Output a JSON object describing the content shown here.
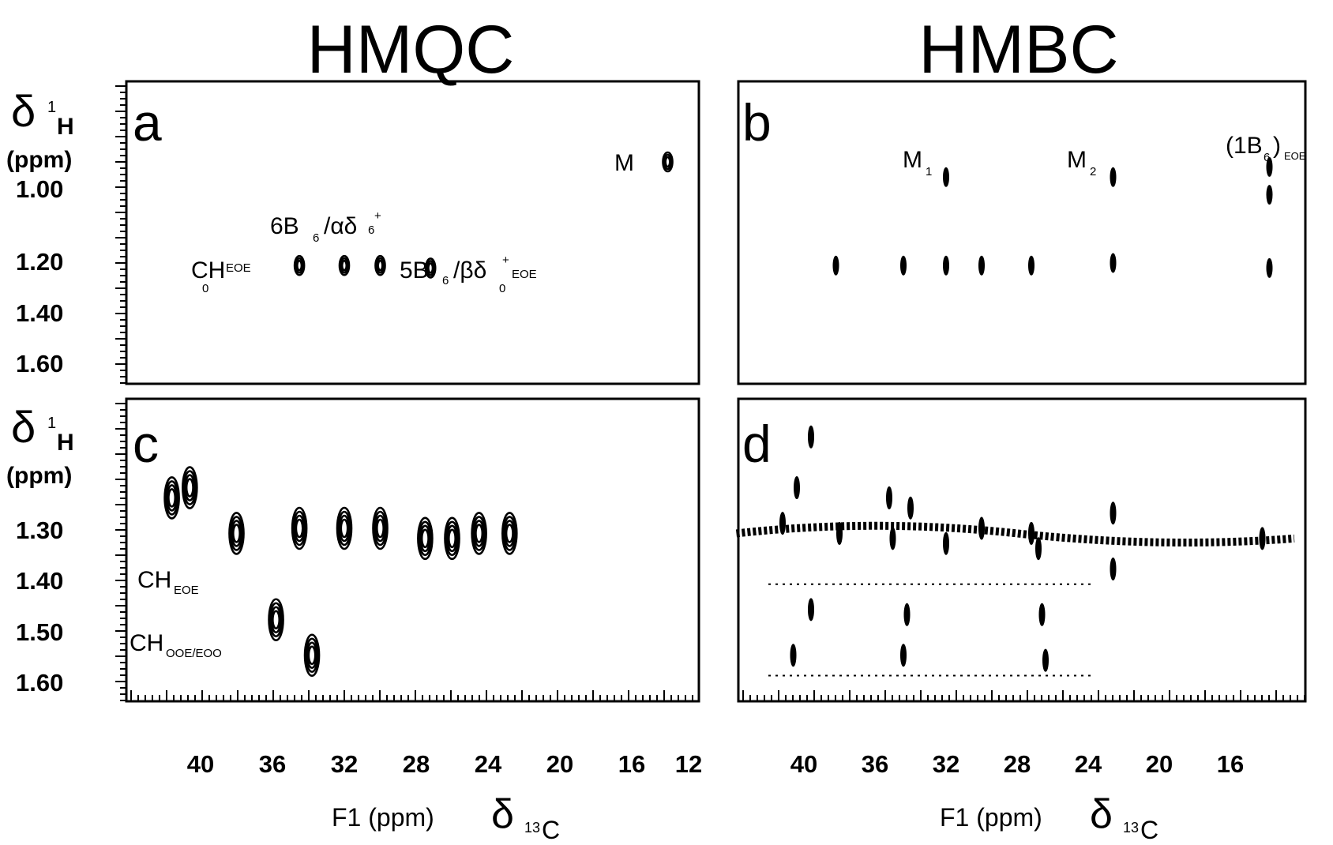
{
  "titles": {
    "left": "HMQC",
    "right": "HMBC"
  },
  "y_axis_label": {
    "delta": "δ",
    "nucleus": "1",
    "element": "H",
    "unit": "(ppm)"
  },
  "x_axis_label": {
    "text": "F1 (ppm)",
    "delta": "δ",
    "nucleus": "13",
    "element": "C"
  },
  "chart_data": [
    {
      "type": "scatter",
      "panel": "a",
      "experiment": "HMQC",
      "ylim": [
        1.7,
        0.75
      ],
      "ytick_labels": [
        "1.00",
        "1.20",
        "1.40",
        "1.60"
      ],
      "peaks": [
        {
          "x": 14.0,
          "y": 0.9,
          "style": "contour"
        },
        {
          "x": 34.5,
          "y": 1.31,
          "style": "contour"
        },
        {
          "x": 32.0,
          "y": 1.31,
          "style": "contour"
        },
        {
          "x": 30.0,
          "y": 1.31,
          "style": "contour"
        },
        {
          "x": 27.2,
          "y": 1.32,
          "style": "contour"
        }
      ],
      "annotations": [
        {
          "main": "M",
          "sub": "",
          "sup": "",
          "x": 15.2,
          "y": 0.88
        },
        {
          "main": "CH",
          "sub": "0",
          "subtext": "EOE",
          "sup": "",
          "x": 43.5,
          "y": 1.24
        },
        {
          "main": "6B",
          "sub": "6",
          "subtext": "/αδ",
          "sup": "+",
          "x": 35.5,
          "y": 1.17
        },
        {
          "main": "5B",
          "sub": "6",
          "subtext": "/βδ",
          "sup": "+",
          "x": 28.5,
          "y": 1.24
        }
      ],
      "label_annotations": {
        "a_M": "M",
        "a_ch": "CH",
        "a_ch_sub": "0",
        "a_ch_sup": "EOE",
        "a_6b": "6B",
        "a_6b_sub": "6",
        "a_6b_rest": "/αδ",
        "a_6b_plus": "+",
        "a_6b_sub2": "6",
        "a_5b": "5B",
        "a_5b_sub": "6",
        "a_5b_rest": "/βδ",
        "a_5b_plus": "+",
        "a_5b_sub0": "0",
        "a_5b_eoe": "EOE"
      }
    },
    {
      "type": "scatter",
      "panel": "b",
      "experiment": "HMBC",
      "ylim": [
        1.7,
        0.75
      ],
      "peaks": [
        {
          "x": 32.0,
          "y": 0.96,
          "style": "filled"
        },
        {
          "x": 22.6,
          "y": 0.96,
          "style": "filled"
        },
        {
          "x": 13.8,
          "y": 0.92,
          "style": "filled"
        },
        {
          "x": 13.8,
          "y": 1.03,
          "style": "filled"
        },
        {
          "x": 38.2,
          "y": 1.31,
          "style": "filled"
        },
        {
          "x": 34.4,
          "y": 1.31,
          "style": "filled"
        },
        {
          "x": 32.0,
          "y": 1.31,
          "style": "filled"
        },
        {
          "x": 30.0,
          "y": 1.31,
          "style": "filled"
        },
        {
          "x": 27.2,
          "y": 1.31,
          "style": "filled"
        },
        {
          "x": 22.6,
          "y": 1.3,
          "style": "filled"
        },
        {
          "x": 13.8,
          "y": 1.32,
          "style": "filled"
        }
      ],
      "annotations": [
        {
          "main": "M",
          "sub": "1",
          "x": 33.0,
          "y": 0.88
        },
        {
          "main": "M",
          "sub": "2",
          "x": 23.6,
          "y": 0.88
        },
        {
          "main": "(1B",
          "sub": "6",
          "suffix": ")",
          "subtext": "EOE",
          "x": 15.5,
          "y": 0.84
        }
      ],
      "label_annotations": {
        "b_m1": "M",
        "b_m1_sub": "1",
        "b_m2": "M",
        "b_m2_sub": "2",
        "b_1b": "(1B",
        "b_1b_sub": "6",
        "b_1b_close": ")",
        "b_1b_eoe": "EOE"
      }
    },
    {
      "type": "scatter",
      "panel": "c",
      "experiment": "HMQC",
      "ylim": [
        1.68,
        1.1
      ],
      "ytick_labels": [
        "1.30",
        "1.40",
        "1.50",
        "1.60"
      ],
      "xlim": [
        44,
        12
      ],
      "xtick_labels": [
        "40",
        "36",
        "32",
        "28",
        "24",
        "20",
        "16",
        "12"
      ],
      "peaks": [
        {
          "x": 40.6,
          "y": 1.22,
          "style": "contour"
        },
        {
          "x": 41.6,
          "y": 1.24,
          "style": "contour"
        },
        {
          "x": 38.0,
          "y": 1.31,
          "style": "contour"
        },
        {
          "x": 34.5,
          "y": 1.3,
          "style": "contour"
        },
        {
          "x": 32.0,
          "y": 1.3,
          "style": "contour"
        },
        {
          "x": 30.0,
          "y": 1.3,
          "style": "contour"
        },
        {
          "x": 27.5,
          "y": 1.32,
          "style": "contour"
        },
        {
          "x": 26.0,
          "y": 1.32,
          "style": "contour"
        },
        {
          "x": 24.5,
          "y": 1.31,
          "style": "contour"
        },
        {
          "x": 22.8,
          "y": 1.31,
          "style": "contour"
        },
        {
          "x": 35.8,
          "y": 1.48,
          "style": "contour"
        },
        {
          "x": 33.8,
          "y": 1.55,
          "style": "contour"
        }
      ],
      "annotations": [
        {
          "main": "CH",
          "subtext": "EOE",
          "x": 43.5,
          "y": 1.4
        },
        {
          "main": "CH",
          "subtext": "OOE/EOO",
          "x": 43.5,
          "y": 1.5
        }
      ],
      "label_annotations": {
        "c_ch1": "CH",
        "c_ch1_sub": "EOE",
        "c_ch2": "CH",
        "c_ch2_sub": "OOE/EOO"
      }
    },
    {
      "type": "scatter",
      "panel": "d",
      "experiment": "HMBC",
      "ylim": [
        1.68,
        1.1
      ],
      "xlim": [
        44,
        12
      ],
      "xtick_labels": [
        "40",
        "36",
        "32",
        "28",
        "24",
        "20",
        "16"
      ],
      "peaks": [
        {
          "x": 40.4,
          "y": 1.22,
          "style": "filled"
        },
        {
          "x": 35.2,
          "y": 1.24,
          "style": "filled"
        },
        {
          "x": 34.0,
          "y": 1.26,
          "style": "filled"
        },
        {
          "x": 41.2,
          "y": 1.29,
          "style": "filled"
        },
        {
          "x": 38.0,
          "y": 1.31,
          "style": "filled"
        },
        {
          "x": 35.0,
          "y": 1.32,
          "style": "filled"
        },
        {
          "x": 32.0,
          "y": 1.33,
          "style": "filled"
        },
        {
          "x": 30.0,
          "y": 1.3,
          "style": "filled"
        },
        {
          "x": 27.2,
          "y": 1.31,
          "style": "filled"
        },
        {
          "x": 26.8,
          "y": 1.34,
          "style": "filled"
        },
        {
          "x": 22.6,
          "y": 1.27,
          "style": "filled"
        },
        {
          "x": 22.6,
          "y": 1.38,
          "style": "filled"
        },
        {
          "x": 14.2,
          "y": 1.32,
          "style": "filled"
        },
        {
          "x": 39.6,
          "y": 1.46,
          "style": "filled"
        },
        {
          "x": 34.2,
          "y": 1.47,
          "style": "filled"
        },
        {
          "x": 26.6,
          "y": 1.47,
          "style": "filled"
        },
        {
          "x": 40.6,
          "y": 1.55,
          "style": "filled"
        },
        {
          "x": 34.4,
          "y": 1.55,
          "style": "filled"
        },
        {
          "x": 26.4,
          "y": 1.56,
          "style": "filled"
        },
        {
          "x": 39.6,
          "y": 1.12,
          "style": "filled"
        }
      ],
      "guides": [
        {
          "y": 1.41,
          "x_from": 42.0,
          "x_to": 23.8
        },
        {
          "y": 1.59,
          "x_from": 42.0,
          "x_to": 23.8
        }
      ]
    }
  ],
  "panel_letters": {
    "a": "a",
    "b": "b",
    "c": "c",
    "d": "d"
  }
}
